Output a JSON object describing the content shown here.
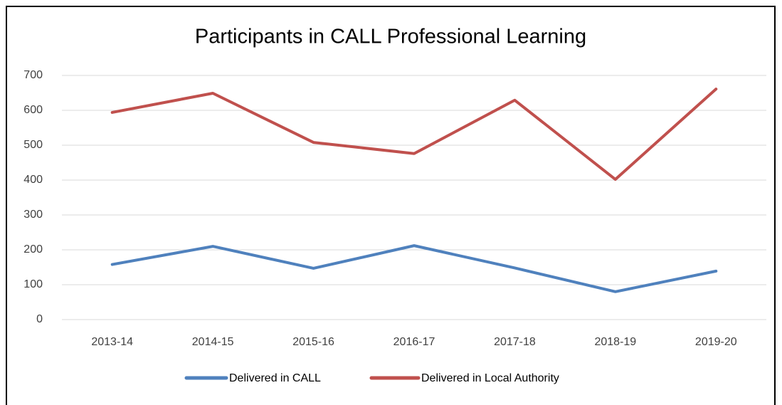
{
  "chart_data": {
    "type": "line",
    "title": "Participants in CALL Professional Learning",
    "categories": [
      "2013-14",
      "2014-15",
      "2015-16",
      "2016-17",
      "2017-18",
      "2018-19",
      "2019-20"
    ],
    "series": [
      {
        "name": "Delivered in CALL",
        "color": "#4f81bd",
        "values": [
          158,
          210,
          147,
          212,
          148,
          80,
          139
        ]
      },
      {
        "name": "Delivered in Local Authority",
        "color": "#c0504d",
        "values": [
          594,
          649,
          508,
          476,
          629,
          402,
          661
        ]
      }
    ],
    "ylim": [
      0,
      700
    ],
    "yticks": [
      0,
      100,
      200,
      300,
      400,
      500,
      600,
      700
    ],
    "grid": true,
    "legend": "bottom"
  }
}
